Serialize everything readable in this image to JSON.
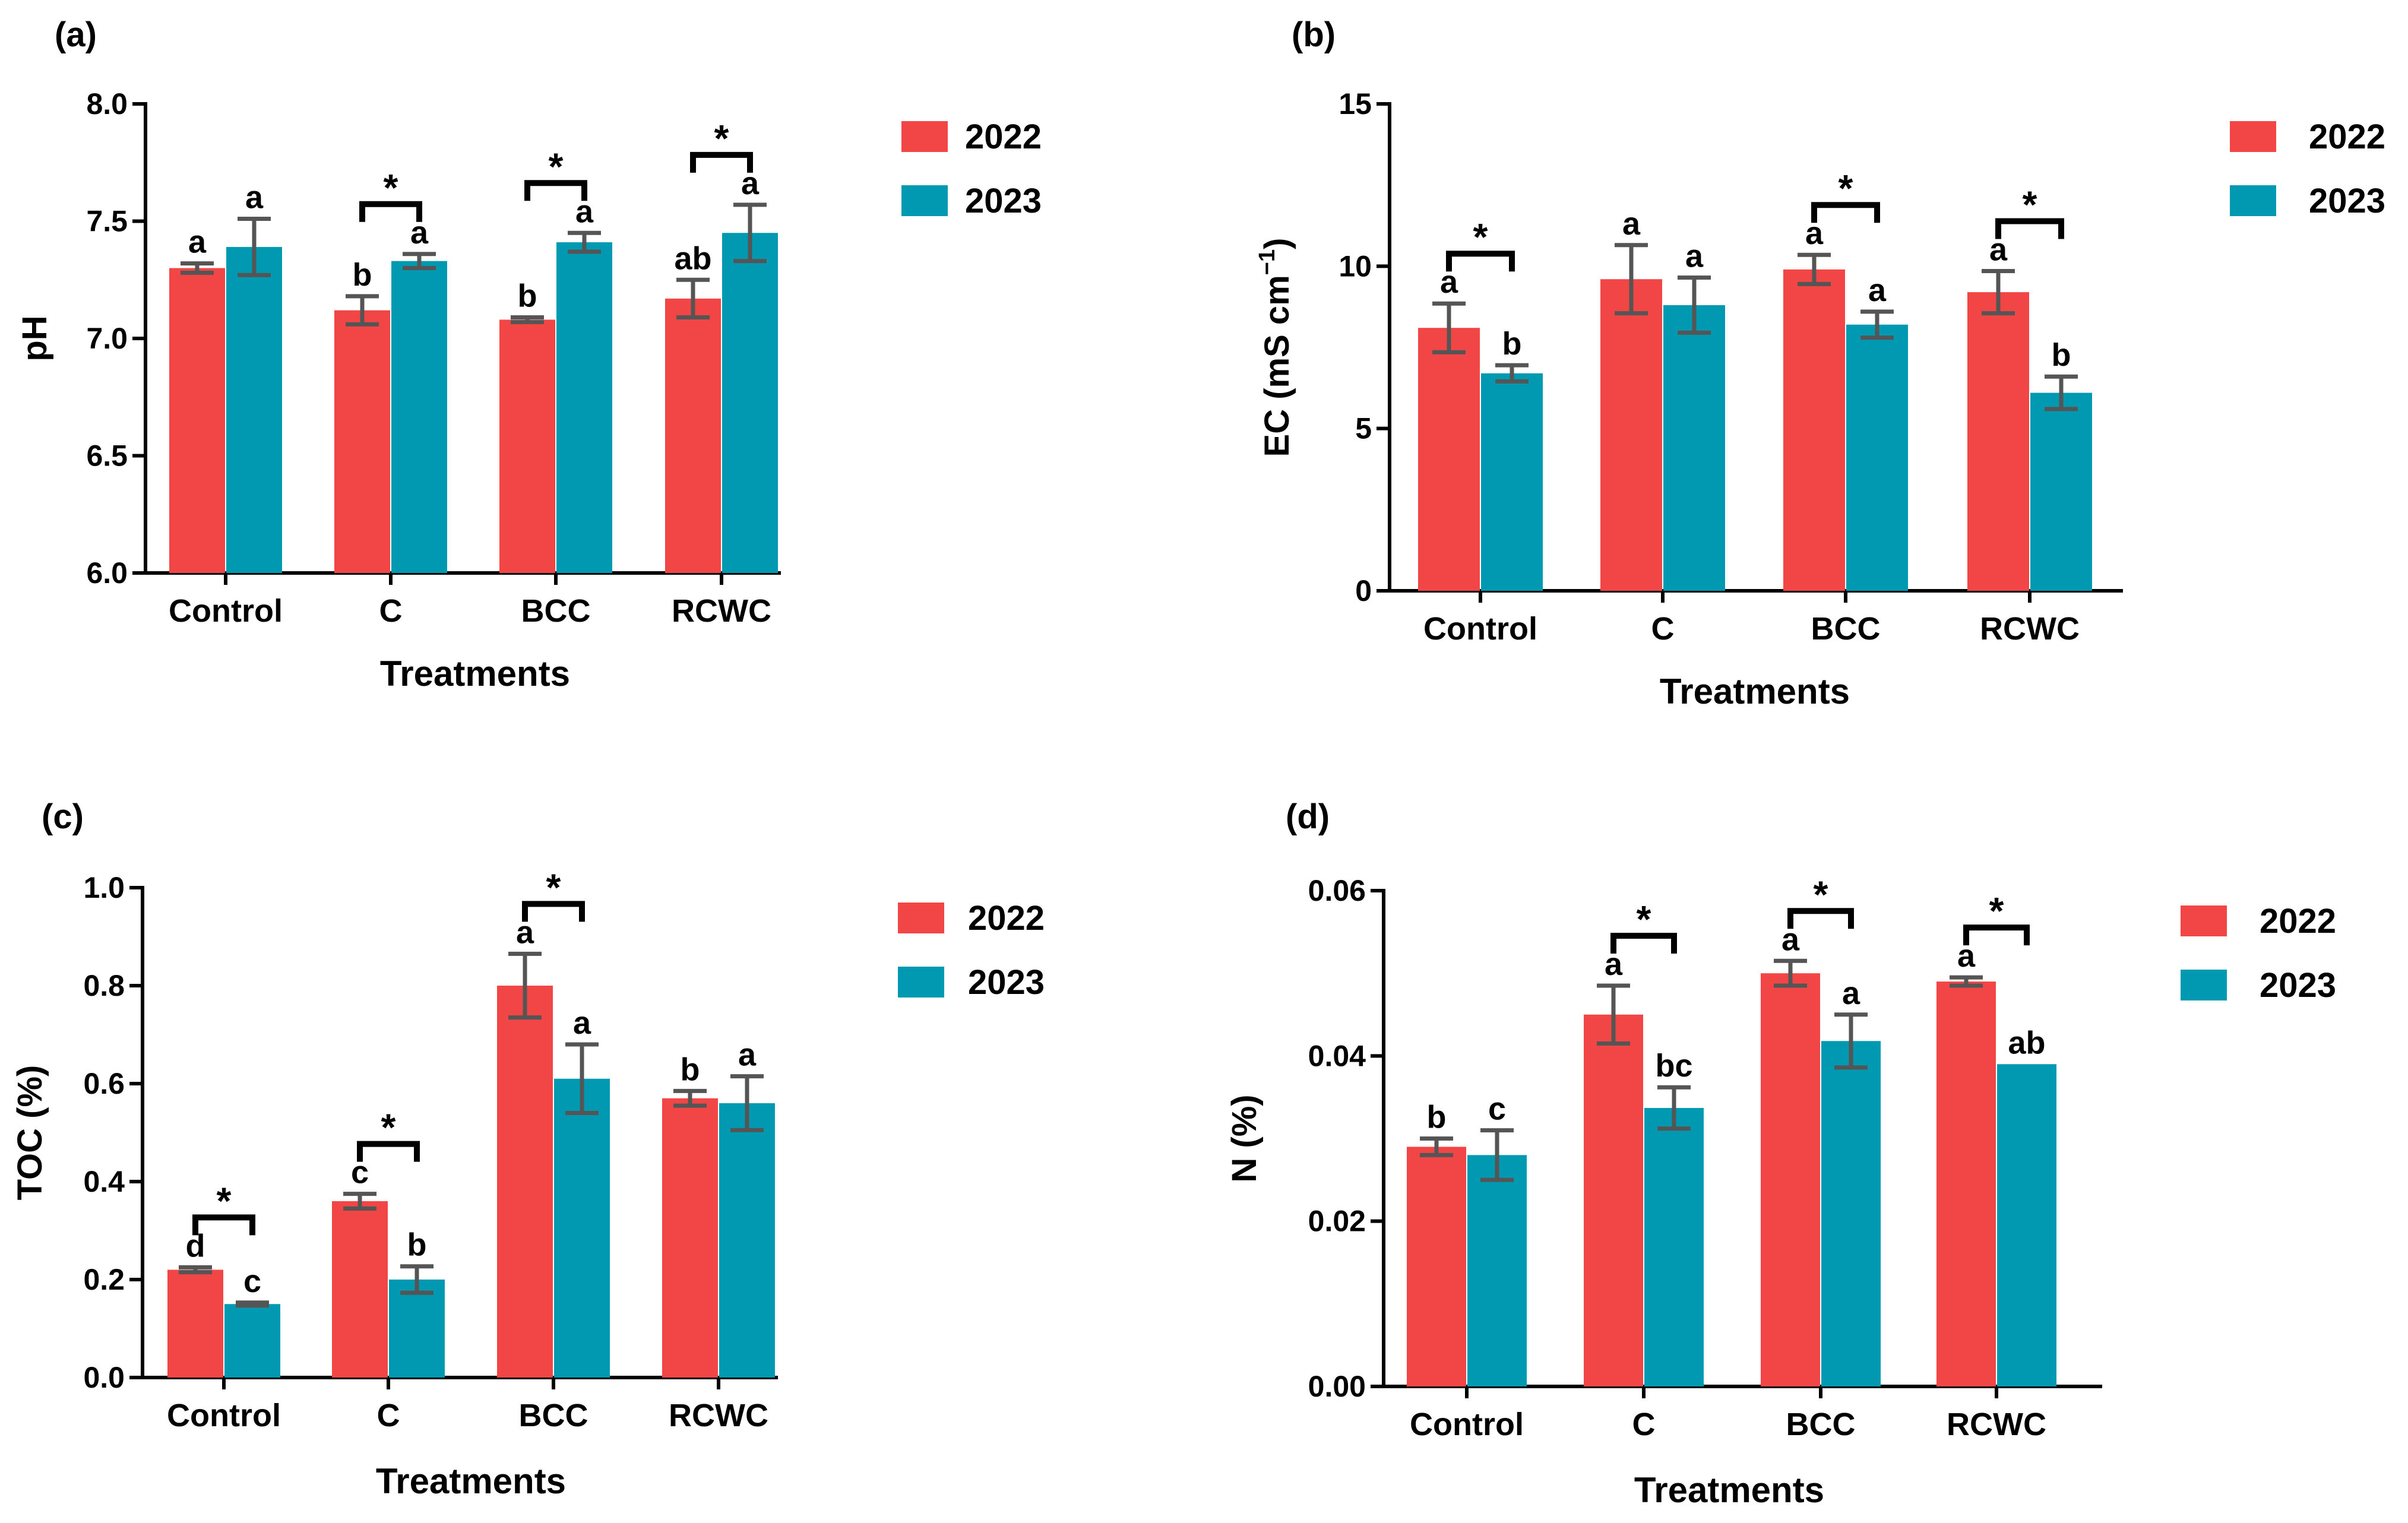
{
  "colors": {
    "y2022": "#f24646",
    "y2023": "#0099b2",
    "error_bar": "#555555"
  },
  "chart_data": [
    {
      "panel_label": "(a)",
      "type": "bar",
      "title": "",
      "xlabel": "Treatments",
      "ylabel": "pH",
      "ylim": [
        6.0,
        8.0
      ],
      "yticks": [
        6.0,
        6.5,
        7.0,
        7.5,
        8.0
      ],
      "ytick_labels": [
        "6.0",
        "6.5",
        "7.0",
        "7.5",
        "8.0"
      ],
      "categories": [
        "Control",
        "C",
        "BCC",
        "RCWC"
      ],
      "series": [
        {
          "name": "2022",
          "values": [
            7.3,
            7.12,
            7.08,
            7.17
          ],
          "errors": [
            0.02,
            0.06,
            0.01,
            0.08
          ],
          "letters": [
            "a",
            "b",
            "b",
            "ab"
          ]
        },
        {
          "name": "2023",
          "values": [
            7.39,
            7.33,
            7.41,
            7.45
          ],
          "errors": [
            0.12,
            0.03,
            0.04,
            0.12
          ],
          "letters": [
            "a",
            "a",
            "a",
            "a"
          ]
        }
      ],
      "significance": [
        false,
        true,
        true,
        true
      ],
      "significance_mark": "*",
      "legend": [
        "2022",
        "2023"
      ],
      "legend_position": "right"
    },
    {
      "panel_label": "(b)",
      "type": "bar",
      "title": "",
      "xlabel": "Treatments",
      "ylabel": "EC (mS cm",
      "ylabel_superscript": "−1",
      "ylabel_suffix": ")",
      "ylim": [
        0,
        15
      ],
      "yticks": [
        0,
        5,
        10,
        15
      ],
      "ytick_labels": [
        "0",
        "5",
        "10",
        "15"
      ],
      "categories": [
        "Control",
        "C",
        "BCC",
        "RCWC"
      ],
      "series": [
        {
          "name": "2022",
          "values": [
            8.1,
            9.6,
            9.9,
            9.2
          ],
          "errors": [
            0.75,
            1.05,
            0.45,
            0.65
          ],
          "letters": [
            "a",
            "a",
            "a",
            "a"
          ]
        },
        {
          "name": "2023",
          "values": [
            6.7,
            8.8,
            8.2,
            6.1
          ],
          "errors": [
            0.25,
            0.85,
            0.4,
            0.5
          ],
          "letters": [
            "b",
            "a",
            "a",
            "b"
          ]
        }
      ],
      "significance": [
        true,
        false,
        true,
        true
      ],
      "significance_mark": "*",
      "legend": [
        "2022",
        "2023"
      ],
      "legend_position": "right"
    },
    {
      "panel_label": "(c)",
      "type": "bar",
      "title": "",
      "xlabel": "Treatments",
      "ylabel": "TOC (%)",
      "ylim": [
        0.0,
        1.0
      ],
      "yticks": [
        0.0,
        0.2,
        0.4,
        0.6,
        0.8,
        1.0
      ],
      "ytick_labels": [
        "0.0",
        "0.2",
        "0.4",
        "0.6",
        "0.8",
        "1.0"
      ],
      "categories": [
        "Control",
        "C",
        "BCC",
        "RCWC"
      ],
      "series": [
        {
          "name": "2022",
          "values": [
            0.22,
            0.36,
            0.8,
            0.57
          ],
          "errors": [
            0.005,
            0.015,
            0.065,
            0.015
          ],
          "letters": [
            "d",
            "c",
            "a",
            "b"
          ]
        },
        {
          "name": "2023",
          "values": [
            0.15,
            0.2,
            0.61,
            0.56
          ],
          "errors": [
            0.003,
            0.027,
            0.07,
            0.055
          ],
          "letters": [
            "c",
            "b",
            "a",
            "a"
          ]
        }
      ],
      "significance": [
        true,
        true,
        true,
        false
      ],
      "significance_mark": "*",
      "legend": [
        "2022",
        "2023"
      ],
      "legend_position": "right"
    },
    {
      "panel_label": "(d)",
      "type": "bar",
      "title": "",
      "xlabel": "Treatments",
      "ylabel": "N (%)",
      "ylim": [
        0.0,
        0.06
      ],
      "yticks": [
        0.0,
        0.02,
        0.04,
        0.06
      ],
      "ytick_labels": [
        "0.00",
        "0.02",
        "0.04",
        "0.06"
      ],
      "categories": [
        "Control",
        "C",
        "BCC",
        "RCWC"
      ],
      "series": [
        {
          "name": "2022",
          "values": [
            0.029,
            0.045,
            0.05,
            0.049
          ],
          "errors": [
            0.001,
            0.0035,
            0.0015,
            0.0005
          ],
          "letters": [
            "b",
            "a",
            "a",
            "a"
          ]
        },
        {
          "name": "2023",
          "values": [
            0.028,
            0.0337,
            0.0418,
            0.039
          ],
          "errors": [
            0.003,
            0.0025,
            0.0032,
            0.0
          ],
          "letters": [
            "c",
            "bc",
            "a",
            "ab"
          ]
        }
      ],
      "significance": [
        false,
        true,
        true,
        true
      ],
      "significance_mark": "*",
      "legend": [
        "2022",
        "2023"
      ],
      "legend_position": "right"
    }
  ]
}
